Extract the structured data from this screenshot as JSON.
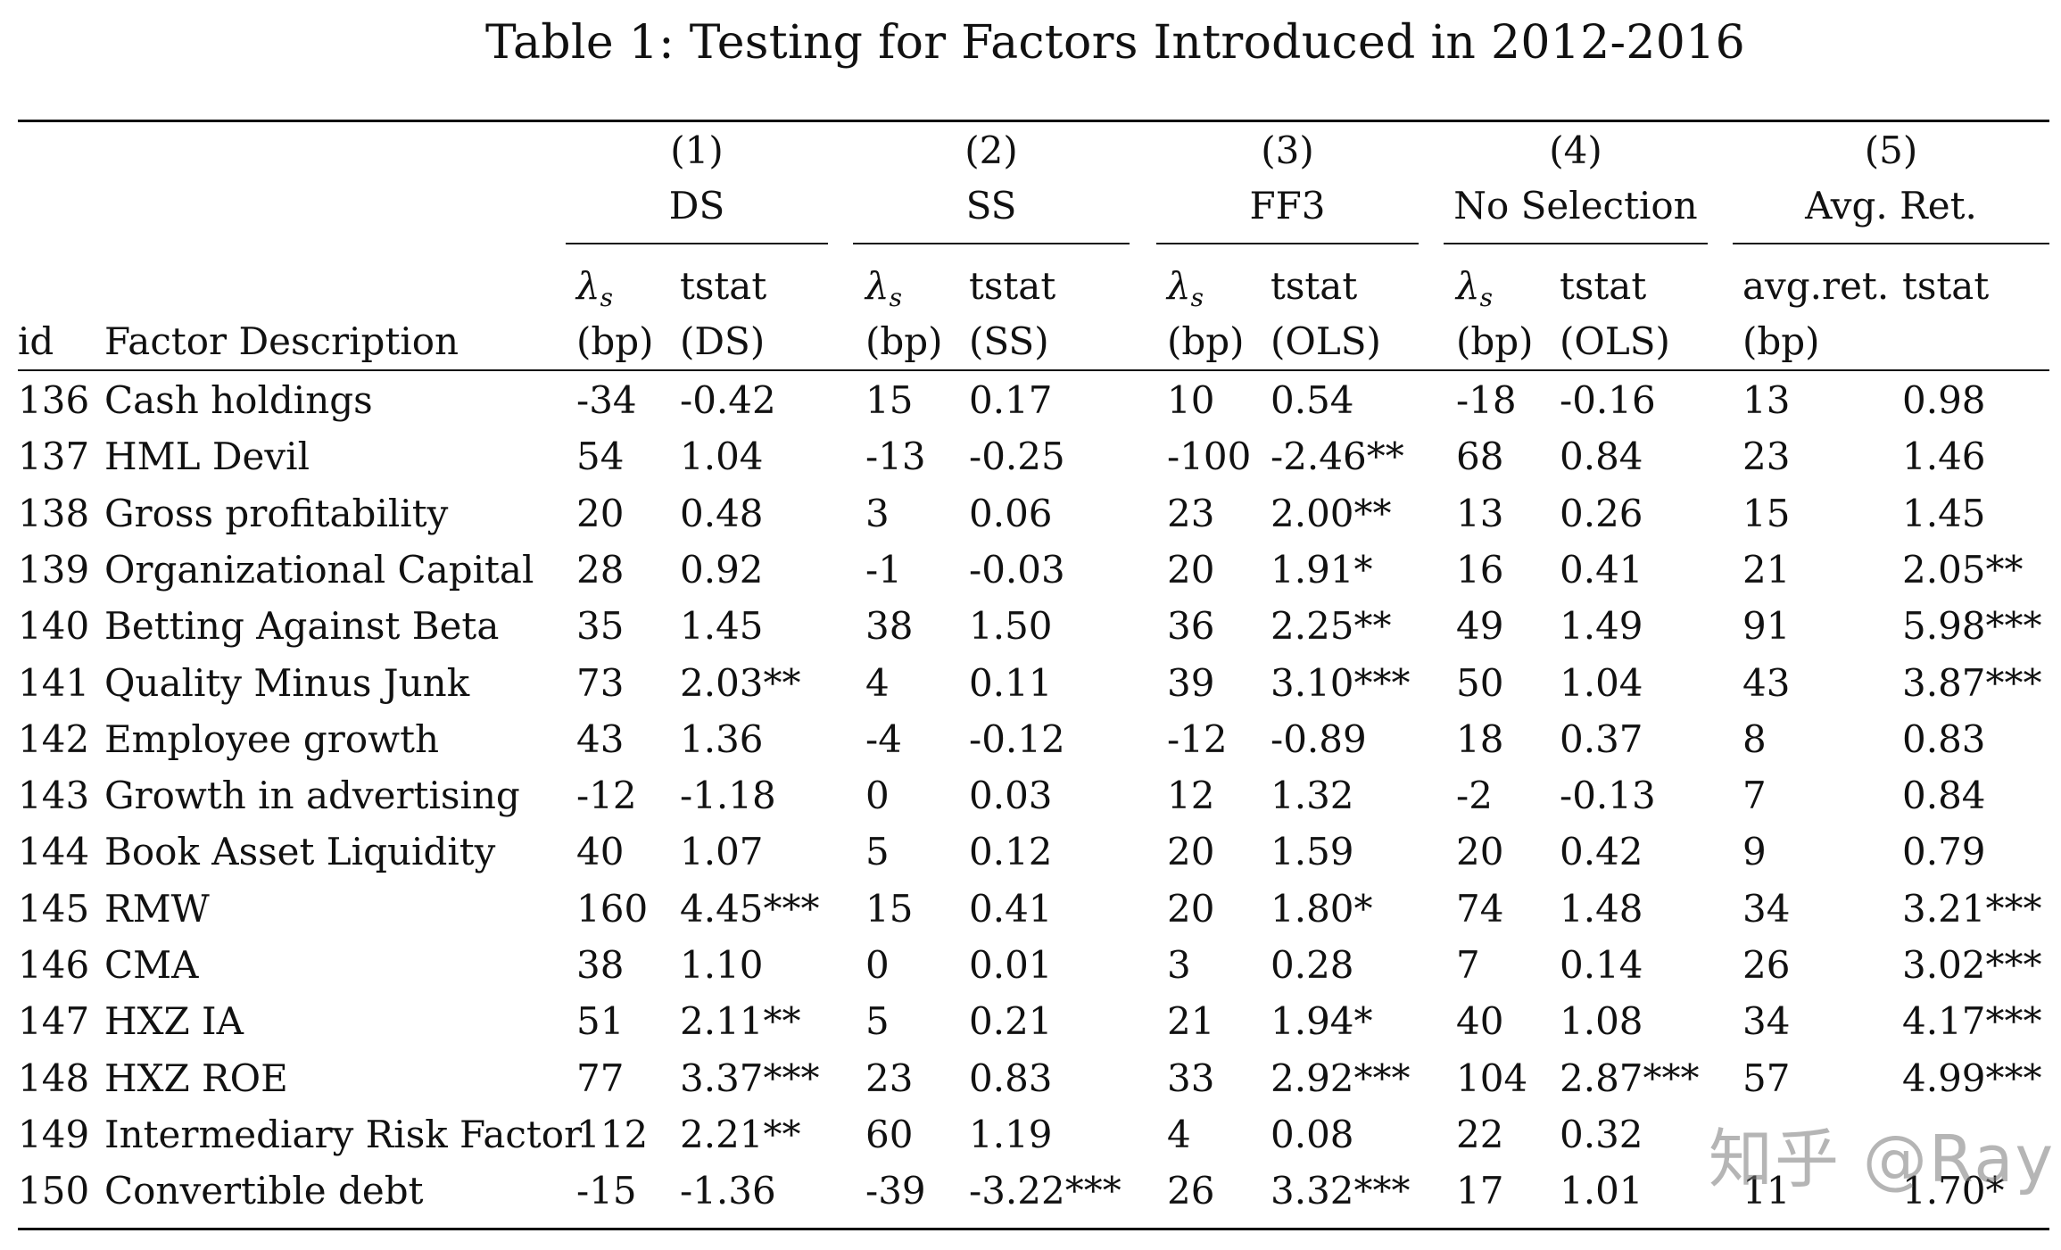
{
  "caption": "Table 1: Testing for Factors Introduced in 2012-2016",
  "groups": [
    {
      "num": "(1)",
      "name": "DS"
    },
    {
      "num": "(2)",
      "name": "SS"
    },
    {
      "num": "(3)",
      "name": "FF3"
    },
    {
      "num": "(4)",
      "name": "No Selection"
    },
    {
      "num": "(5)",
      "name": "Avg. Ret."
    }
  ],
  "header": {
    "id": "id",
    "desc": "Factor Description",
    "lambda_symbol": "λ",
    "lambda_sub": "s",
    "bp": "(bp)",
    "tstat": "tstat",
    "tstat_sub": [
      "(DS)",
      "(SS)",
      "(OLS)",
      "(OLS)"
    ],
    "avgret": "avg.ret."
  },
  "rows": [
    [
      "136",
      "Cash holdings",
      "-34",
      "-0.42",
      "15",
      "0.17",
      "10",
      "0.54",
      "-18",
      "-0.16",
      "13",
      "0.98"
    ],
    [
      "137",
      "HML Devil",
      "54",
      "1.04",
      "-13",
      "-0.25",
      "-100",
      "-2.46**",
      "68",
      "0.84",
      "23",
      "1.46"
    ],
    [
      "138",
      "Gross profitability",
      "20",
      "0.48",
      "3",
      "0.06",
      "23",
      "2.00**",
      "13",
      "0.26",
      "15",
      "1.45"
    ],
    [
      "139",
      "Organizational Capital",
      "28",
      "0.92",
      "-1",
      "-0.03",
      "20",
      "1.91*",
      "16",
      "0.41",
      "21",
      "2.05**"
    ],
    [
      "140",
      "Betting Against Beta",
      "35",
      "1.45",
      "38",
      "1.50",
      "36",
      "2.25**",
      "49",
      "1.49",
      "91",
      "5.98***"
    ],
    [
      "141",
      "Quality Minus Junk",
      "73",
      "2.03**",
      "4",
      "0.11",
      "39",
      "3.10***",
      "50",
      "1.04",
      "43",
      "3.87***"
    ],
    [
      "142",
      "Employee growth",
      "43",
      "1.36",
      "-4",
      "-0.12",
      "-12",
      "-0.89",
      "18",
      "0.37",
      "8",
      "0.83"
    ],
    [
      "143",
      "Growth in advertising",
      "-12",
      "-1.18",
      "0",
      "0.03",
      "12",
      "1.32",
      "-2",
      "-0.13",
      "7",
      "0.84"
    ],
    [
      "144",
      "Book Asset Liquidity",
      "40",
      "1.07",
      "5",
      "0.12",
      "20",
      "1.59",
      "20",
      "0.42",
      "9",
      "0.79"
    ],
    [
      "145",
      "RMW",
      "160",
      "4.45***",
      "15",
      "0.41",
      "20",
      "1.80*",
      "74",
      "1.48",
      "34",
      "3.21***"
    ],
    [
      "146",
      "CMA",
      "38",
      "1.10",
      "0",
      "0.01",
      "3",
      "0.28",
      "7",
      "0.14",
      "26",
      "3.02***"
    ],
    [
      "147",
      "HXZ IA",
      "51",
      "2.11**",
      "5",
      "0.21",
      "21",
      "1.94*",
      "40",
      "1.08",
      "34",
      "4.17***"
    ],
    [
      "148",
      "HXZ ROE",
      "77",
      "3.37***",
      "23",
      "0.83",
      "33",
      "2.92***",
      "104",
      "2.87***",
      "57",
      "4.99***"
    ],
    [
      "149",
      "Intermediary Risk Factor",
      "112",
      "2.21**",
      "60",
      "1.19",
      "4",
      "0.08",
      "22",
      "0.32",
      "",
      ""
    ],
    [
      "150",
      "Convertible debt",
      "-15",
      "-1.36",
      "-39",
      "-3.22***",
      "26",
      "3.32***",
      "17",
      "1.01",
      "11",
      "1.70*"
    ]
  ],
  "watermark": "知乎 @Ray"
}
